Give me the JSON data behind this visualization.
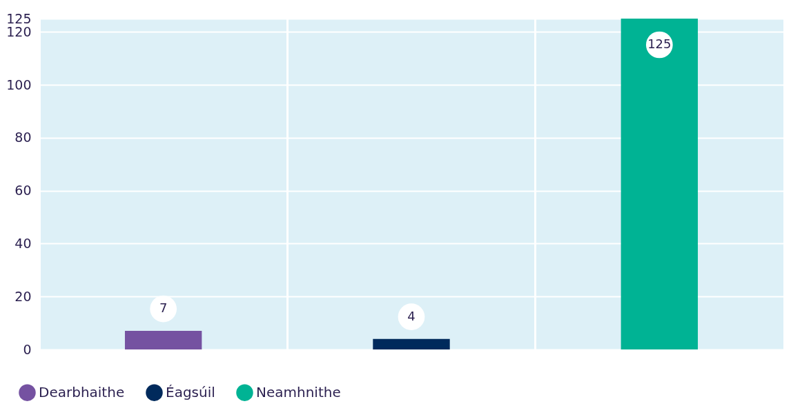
{
  "chart_data": {
    "type": "bar",
    "categories": [
      null,
      null,
      null
    ],
    "series": [
      {
        "name": "Dearbhaithe",
        "color": "#7552a1",
        "values": [
          7,
          null,
          null
        ]
      },
      {
        "name": "Éagsúil",
        "color": "#002a5c",
        "values": [
          null,
          4,
          null
        ]
      },
      {
        "name": "Neamhnithe",
        "color": "#00b394",
        "values": [
          null,
          null,
          125
        ]
      }
    ],
    "ylim": [
      0,
      125
    ],
    "yticks": [
      0,
      20,
      40,
      60,
      80,
      100,
      120,
      125
    ],
    "grid": true,
    "tick_labels": "y",
    "data_labels": true,
    "legend": "bottom left"
  }
}
